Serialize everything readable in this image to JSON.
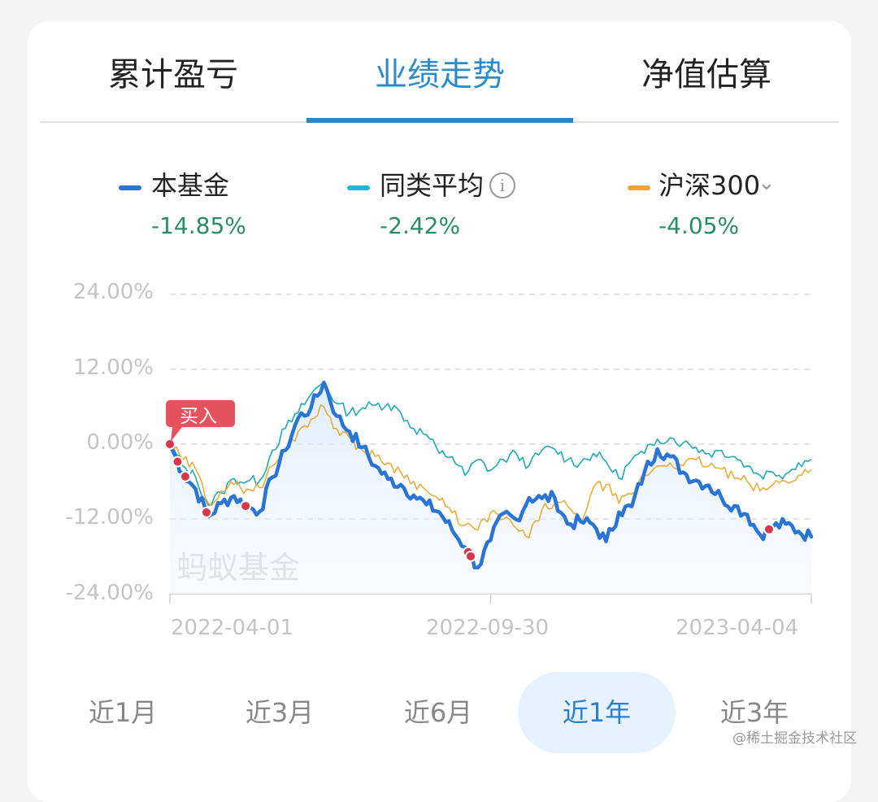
{
  "tabs": [
    {
      "label": "累计盈亏",
      "active": false
    },
    {
      "label": "业绩走势",
      "active": true
    },
    {
      "label": "净值估算",
      "active": false
    }
  ],
  "legend": [
    {
      "label": "本基金",
      "value": "-14.85%",
      "color": "#2a74d6"
    },
    {
      "label": "同类平均",
      "value": "-2.42%",
      "color": "#21b0c8",
      "icon": "info-icon"
    },
    {
      "label": "沪深300",
      "value": "-4.05%",
      "color": "#e8a832",
      "icon": "chevron-down-icon"
    }
  ],
  "buy_marker": {
    "label": "买入"
  },
  "watermark_chart": "蚂蚁基金",
  "periods": [
    {
      "label": "近1月",
      "active": false
    },
    {
      "label": "近3月",
      "active": false
    },
    {
      "label": "近6月",
      "active": false
    },
    {
      "label": "近1年",
      "active": true
    },
    {
      "label": "近3年",
      "active": false
    }
  ],
  "watermark_corner": "@稀土掘金技术社区",
  "colors": {
    "accent": "#2b8ccc",
    "fund": "#2a74d6",
    "average": "#21a9b8",
    "csi300": "#e8a832",
    "buy_point": "#d8364a",
    "positive_negative_value": "#2a8c6a"
  },
  "chart_data": {
    "type": "line",
    "title": "业绩走势",
    "xlabel": "",
    "ylabel": "",
    "ylim": [
      -24,
      24
    ],
    "yticks": [
      "24.00%",
      "12.00%",
      "0.00%",
      "-12.00%",
      "-24.00%"
    ],
    "xticks": [
      "2022-04-01",
      "2022-09-30",
      "2023-04-04"
    ],
    "grid": true,
    "legend_position": "top",
    "x": [
      0,
      2,
      4,
      6,
      8,
      10,
      12,
      14,
      16,
      18,
      20,
      22,
      24,
      26,
      28,
      30,
      32,
      34,
      36,
      38,
      40,
      42,
      44,
      46,
      48,
      50,
      52,
      54,
      56,
      58,
      60,
      62,
      64,
      66,
      68,
      70,
      72,
      74,
      76,
      78,
      80,
      82,
      84,
      86,
      88,
      90,
      92,
      94,
      96,
      98,
      100
    ],
    "x_note": "x is percent of elapsed time from 2022-04-01 (0) to 2023-04-04 (100); 2022-09-30 ≈ 50",
    "series": [
      {
        "name": "本基金",
        "color": "#2a74d6",
        "final_value": -14.85,
        "values": [
          0,
          -4.7,
          -7.2,
          -11.6,
          -9.5,
          -8.3,
          -10.1,
          -10.8,
          -5.3,
          -1.0,
          4.2,
          5.8,
          9.9,
          4.5,
          2.0,
          -0.5,
          -3.5,
          -5.6,
          -6.5,
          -8.2,
          -9.7,
          -10.9,
          -13.8,
          -16.5,
          -19.8,
          -15.4,
          -11.1,
          -12.1,
          -8.6,
          -8.7,
          -8.6,
          -12.8,
          -12.4,
          -12.9,
          -15.6,
          -10.9,
          -10.0,
          -4.4,
          -0.8,
          -2.0,
          -4.5,
          -5.8,
          -6.6,
          -8.6,
          -9.9,
          -11.3,
          -14.5,
          -13.3,
          -12.8,
          -14.0,
          -14.85
        ]
      },
      {
        "name": "同类平均",
        "color": "#21a9b8",
        "final_value": -2.42,
        "values": [
          0,
          -3.5,
          -5.3,
          -9.8,
          -7.8,
          -5.5,
          -6.0,
          -5.8,
          -1.0,
          2.5,
          5.0,
          8.0,
          10.0,
          6.5,
          5.0,
          5.8,
          6.2,
          6.5,
          5.0,
          2.5,
          1.5,
          -1.5,
          -2.0,
          -5.0,
          -2.5,
          -4.2,
          -2.5,
          -1.5,
          -3.5,
          -1.0,
          -0.8,
          -2.5,
          -3.0,
          -1.5,
          -2.8,
          -5.5,
          -2.5,
          -1.5,
          0.8,
          1.0,
          0.2,
          -0.5,
          -1.5,
          -1.0,
          -2.0,
          -3.5,
          -5.0,
          -4.5,
          -4.8,
          -3.0,
          -2.42
        ]
      },
      {
        "name": "沪深300",
        "color": "#e8a832",
        "final_value": -4.05,
        "values": [
          0,
          -2.5,
          -4.0,
          -9.5,
          -7.5,
          -6.5,
          -7.2,
          -7.0,
          -3.5,
          -1.0,
          2.0,
          4.0,
          6.0,
          2.5,
          1.0,
          -1.0,
          -2.0,
          -3.0,
          -4.5,
          -6.0,
          -7.5,
          -9.0,
          -11.0,
          -13.0,
          -13.8,
          -11.0,
          -12.0,
          -13.5,
          -15.0,
          -10.5,
          -9.5,
          -10.0,
          -12.5,
          -7.0,
          -6.5,
          -9.5,
          -8.0,
          -5.0,
          -3.5,
          -3.0,
          -3.5,
          -2.5,
          -3.5,
          -4.0,
          -5.5,
          -6.0,
          -7.5,
          -6.5,
          -6.0,
          -5.0,
          -4.05
        ]
      }
    ],
    "buy_points_x": [
      0,
      1.2,
      2.4,
      5.7,
      11.8,
      46.5,
      46.9,
      93.4
    ],
    "buy_points_series": "本基金",
    "annotation": "买入"
  }
}
